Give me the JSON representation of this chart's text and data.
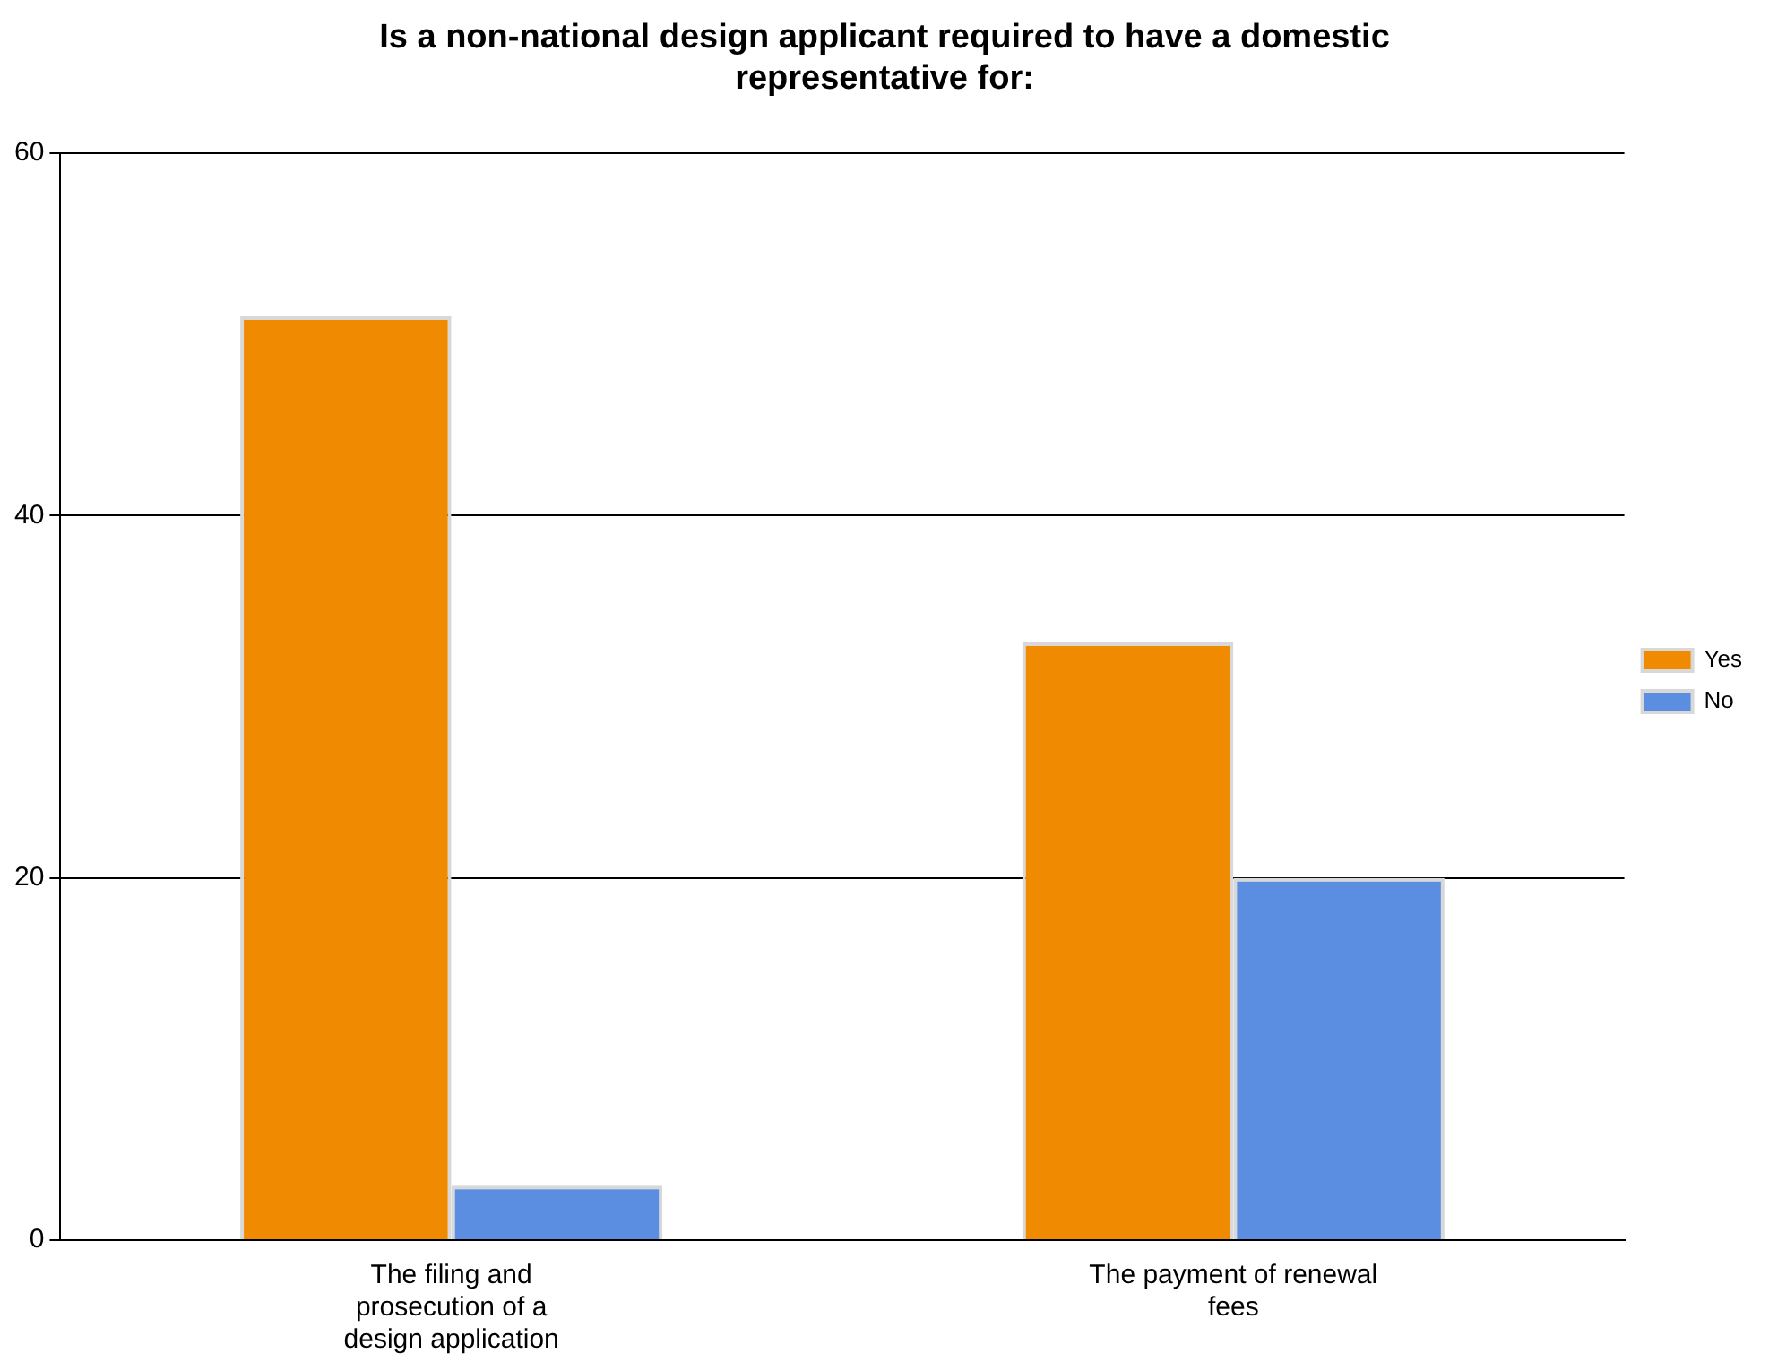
{
  "chart_data": {
    "type": "bar",
    "title": "Is a non-national design applicant required to have a domestic representative for:",
    "categories": [
      "The filing and prosecution of a design application",
      "The payment of renewal fees"
    ],
    "series": [
      {
        "name": "Yes",
        "color": "#f08a00",
        "values": [
          51,
          33
        ]
      },
      {
        "name": "No",
        "color": "#5b8ee0",
        "values": [
          3,
          20
        ]
      }
    ],
    "ylim": [
      0,
      60
    ],
    "yticks": [
      0,
      20,
      40,
      60
    ],
    "grid": "y",
    "legend": "right"
  }
}
